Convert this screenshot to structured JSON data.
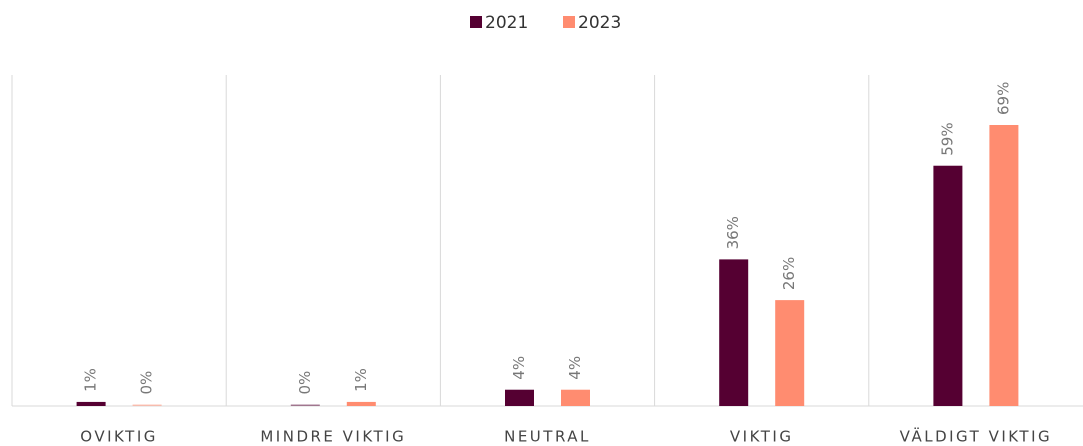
{
  "chart_data": {
    "type": "bar",
    "categories": [
      "OVIKTIG",
      "MINDRE VIKTIG",
      "NEUTRAL",
      "VIKTIG",
      "VÄLDIGT VIKTIG"
    ],
    "series": [
      {
        "name": "2021",
        "color": "#550032",
        "values": [
          1,
          0,
          4,
          36,
          59
        ],
        "value_labels": [
          "1%",
          "0%",
          "4%",
          "36%",
          "59%"
        ]
      },
      {
        "name": "2023",
        "color": "#ff8c70",
        "values": [
          0,
          1,
          4,
          26,
          69
        ],
        "value_labels": [
          "0%",
          "1%",
          "4%",
          "26%",
          "69%"
        ]
      }
    ],
    "legend": "top"
  }
}
